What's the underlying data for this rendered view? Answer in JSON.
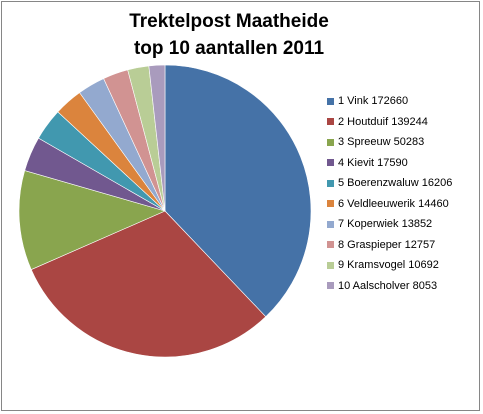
{
  "chart_data": {
    "type": "pie",
    "title_lines": [
      "Trektelpost Maatheide",
      "top 10 aantallen 2011"
    ],
    "slices": [
      {
        "label": "1 Vink 172660",
        "value": 172660,
        "color": "#4572A7"
      },
      {
        "label": "2 Houtduif 139244",
        "value": 139244,
        "color": "#AA4643"
      },
      {
        "label": "3 Spreeuw 50283",
        "value": 50283,
        "color": "#89A54E"
      },
      {
        "label": "4 Kievit 17590",
        "value": 17590,
        "color": "#71588F"
      },
      {
        "label": "5 Boerenzwaluw 16206",
        "value": 16206,
        "color": "#4198AF"
      },
      {
        "label": "6 Veldleeuwerik 14460",
        "value": 14460,
        "color": "#DB843D"
      },
      {
        "label": "7 Koperwiek 13852",
        "value": 13852,
        "color": "#93A9CF"
      },
      {
        "label": "8 Graspieper 12757",
        "value": 12757,
        "color": "#D19392"
      },
      {
        "label": "9 Kramsvogel 10692",
        "value": 10692,
        "color": "#B9CD96"
      },
      {
        "label": "10 Aalscholver 8053",
        "value": 8053,
        "color": "#A99BBD"
      }
    ],
    "legend_position": "right"
  }
}
